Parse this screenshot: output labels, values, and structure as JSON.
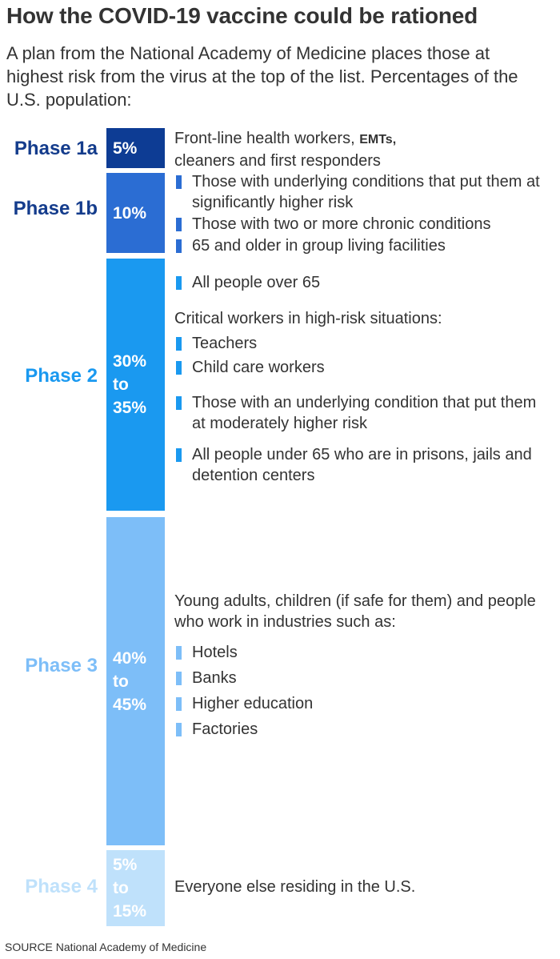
{
  "header": {
    "title": "How the COVID-19 vaccine could be rationed",
    "subtitle": "A plan from the National Academy of Medicine places those at highest risk from the virus at the top of the list. Percentages of the U.S. population:"
  },
  "source": "SOURCE National Academy of Medicine",
  "chart_data": {
    "type": "bar",
    "categories": [
      "Phase 1a",
      "Phase 1b",
      "Phase 2",
      "Phase 3",
      "Phase 4"
    ],
    "bar_labels": [
      "5%",
      "10%",
      "30%\nto\n35%",
      "40%\nto\n45%",
      "5%\nto\n15%"
    ],
    "ranges": [
      [
        5,
        5
      ],
      [
        10,
        10
      ],
      [
        30,
        35
      ],
      [
        40,
        45
      ],
      [
        5,
        15
      ]
    ],
    "colors": [
      "#0d3c94",
      "#2b6dd3",
      "#1a99f0",
      "#7dbef8",
      "#bfe1fb"
    ],
    "label_colors": [
      "#143c8c",
      "#143c8c",
      "#1a99f0",
      "#7dbef8",
      "#bfe1fb"
    ]
  },
  "phases": {
    "p1a": {
      "desc_1": "Front-line health workers, ",
      "desc_emts": "EMTs,",
      "desc_2": "cleaners and first responders"
    },
    "p1b": {
      "bullets": [
        "Those with underlying conditions that put them at significantly higher risk",
        "Those with two or more chronic conditions",
        "65 and older in group living facilities"
      ]
    },
    "p2": {
      "bullet_top": "All people over 65",
      "subheading": "Critical workers in high-risk situations:",
      "bullets": [
        "Teachers",
        "Child care workers",
        "Those with an underlying condition that put them at moderately higher risk",
        "All people under 65 who are in prisons, jails and detention centers"
      ]
    },
    "p3": {
      "subheading": "Young adults, children (if safe for them) and people who work in industries such as:",
      "bullets": [
        "Hotels",
        "Banks",
        "Higher education",
        "Factories"
      ]
    },
    "p4": {
      "desc": "Everyone else residing in the U.S."
    }
  }
}
